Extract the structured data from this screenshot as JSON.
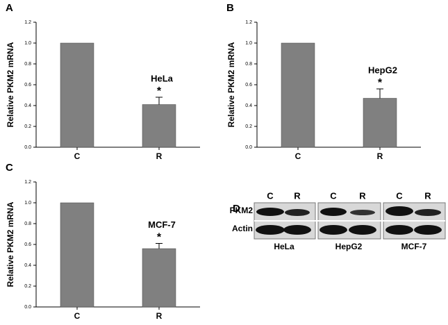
{
  "chart_data": [
    {
      "type": "bar",
      "panel": "A",
      "ylabel": "Relative PKM2 mRNA",
      "categories": [
        "C",
        "R"
      ],
      "values": [
        1.0,
        0.41
      ],
      "errors": [
        null,
        0.07
      ],
      "color": "#808080",
      "ylim": [
        0,
        1.2
      ],
      "yticks": [
        {
          "value": 0,
          "label": "0.0"
        },
        0.2,
        0.4,
        0.6,
        0.8,
        {
          "value": 1,
          "label": "1.0"
        },
        1.2
      ],
      "annotation": "HeLa",
      "marker": "*"
    },
    {
      "type": "bar",
      "panel": "B",
      "ylabel": "Relative PKM2 mRNA",
      "categories": [
        "C",
        "R"
      ],
      "values": [
        1.0,
        0.47
      ],
      "errors": [
        null,
        0.09
      ],
      "color": "#808080",
      "ylim": [
        0,
        1.2
      ],
      "yticks": [
        {
          "value": 0,
          "label": "0.0"
        },
        0.2,
        0.4,
        0.6,
        0.8,
        {
          "value": 1,
          "label": "1.0"
        },
        1.2
      ],
      "annotation": "HepG2",
      "marker": "*"
    },
    {
      "type": "bar",
      "panel": "C",
      "ylabel": "Relative PKM2 mRNA",
      "categories": [
        "C",
        "R"
      ],
      "values": [
        1.0,
        0.56
      ],
      "errors": [
        null,
        0.05
      ],
      "color": "#808080",
      "ylim": [
        0,
        1.2
      ],
      "yticks": [
        {
          "value": 0,
          "label": "0.0"
        },
        0.2,
        0.4,
        0.6,
        0.8,
        {
          "value": 1,
          "label": "1.0"
        },
        1.2
      ],
      "annotation": "MCF-7",
      "marker": "*"
    }
  ],
  "blot": {
    "panel": "D",
    "lanes": [
      "C",
      "R",
      "C",
      "R",
      "C",
      "R"
    ],
    "rows": [
      "PKM2",
      "Actin"
    ],
    "cell_lines": [
      "HeLa",
      "HepG2",
      "MCF-7"
    ]
  }
}
